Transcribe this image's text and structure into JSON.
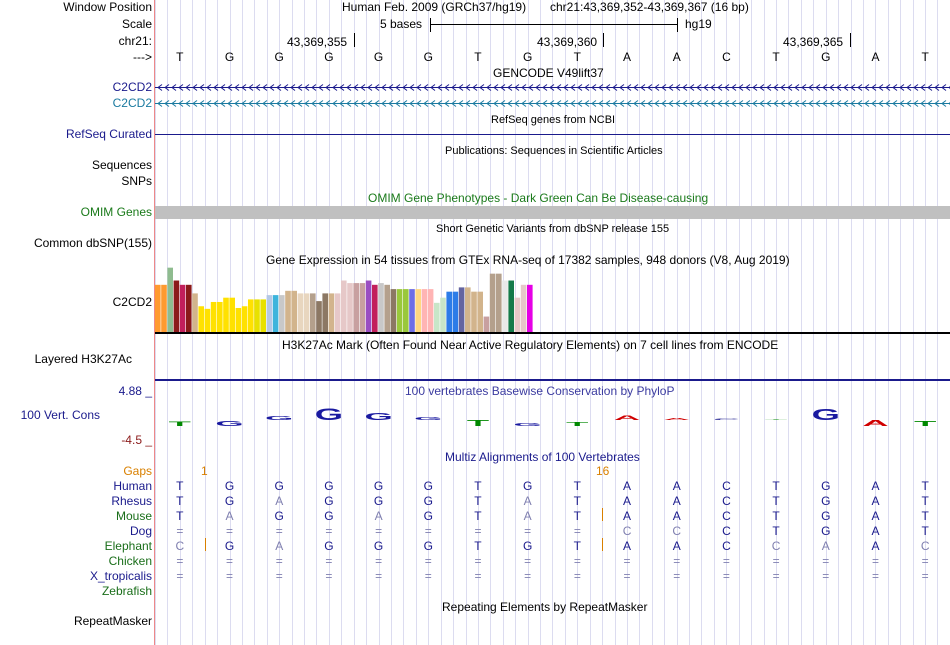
{
  "position": {
    "label": "Window Position",
    "assembly": "Human Feb. 2009 (GRCh37/hg19)",
    "coords": "chr21:43,369,352-43,369,367 (16 bp)"
  },
  "scale": {
    "label": "Scale",
    "bases": "5 bases",
    "db": "hg19"
  },
  "ruler": {
    "label": "chr21:",
    "marks": [
      "43,369,355",
      "43,369,360",
      "43,369,365"
    ]
  },
  "strand": {
    "label": "--->"
  },
  "bases": [
    "T",
    "G",
    "G",
    "G",
    "G",
    "G",
    "T",
    "G",
    "T",
    "A",
    "A",
    "C",
    "T",
    "G",
    "A",
    "T"
  ],
  "gencode": {
    "title": "GENCODE V49lift37",
    "genes": [
      "C2CD2",
      "C2CD2"
    ]
  },
  "refseq": {
    "title": "RefSeq genes from NCBI",
    "label": "RefSeq Curated"
  },
  "publications": {
    "title": "Publications: Sequences in Scientific Articles",
    "labels": [
      "Sequences",
      "SNPs"
    ]
  },
  "omim": {
    "title": "OMIM Gene Phenotypes - Dark Green Can Be Disease-causing",
    "label": "OMIM Genes",
    "color": "#1a7a1a"
  },
  "dbsnp": {
    "title": "Short Genetic Variants from dbSNP release 155",
    "label": "Common dbSNP(155)"
  },
  "gtex": {
    "title": "Gene Expression in 54 tissues from GTEx RNA-seq of 17382 samples, 948 donors (V8, Aug 2019)",
    "label": "C2CD2",
    "values": [
      0.55,
      0.55,
      0.75,
      0.6,
      0.55,
      0.55,
      0.45,
      0.3,
      0.27,
      0.35,
      0.35,
      0.4,
      0.4,
      0.28,
      0.3,
      0.38,
      0.38,
      0.38,
      0.43,
      0.43,
      0.43,
      0.48,
      0.48,
      0.45,
      0.45,
      0.45,
      0.36,
      0.45,
      0.45,
      0.45,
      0.6,
      0.57,
      0.57,
      0.57,
      0.6,
      0.55,
      0.57,
      0.55,
      0.5,
      0.5,
      0.5,
      0.5,
      0.5,
      0.5,
      0.5,
      0.34,
      0.4,
      0.47,
      0.47,
      0.52,
      0.52,
      0.47,
      0.47,
      0.18,
      0.68,
      0.68,
      0.6,
      0.6,
      0.4,
      0.55,
      0.55,
      0.6,
      0.6,
      0.6,
      0.6,
      0.6,
      0.6,
      0.5,
      0.68,
      0.52,
      0.75,
      0.75,
      0.45,
      0.45,
      0.45,
      0.42,
      0.6,
      0.6,
      0.6,
      0.6,
      0.52,
      0.52,
      0.08
    ],
    "colors": [
      "#ff9a30",
      "#ff9a30",
      "#8fbc8f",
      "#8b1a1a",
      "#c21f5b",
      "#8b1a1a",
      "#d2b48c",
      "#ffe100",
      "#ffe100",
      "#ffe100",
      "#ffe100",
      "#ffe100",
      "#ffe100",
      "#ffe100",
      "#ffe100",
      "#ffe100",
      "#e8e100",
      "#e8e100",
      "#b4c8e6",
      "#3cb4dc",
      "#c8c8c8",
      "#d2b48c",
      "#d2b48c",
      "#e8d6bf",
      "#e8d6bf",
      "#b4a08c",
      "#8c7864",
      "#8c7864",
      "#d2b48c",
      "#e6c8c8",
      "#e6c8c8",
      "#e6c8c8",
      "#c8a0a0",
      "#c8a0a0",
      "#9a4ec2",
      "#c21f5b",
      "#c8c8c8",
      "#b4a08c",
      "#8c7864",
      "#9ac83c",
      "#9ac83c",
      "#6e6ee6",
      "#ffd780",
      "#ffb4b4",
      "#ffb4b4",
      "#c8e6c8",
      "#c8e6c8",
      "#2c7ce8",
      "#2c7ce8",
      "#6464a0",
      "#d2b48c",
      "#d2b48c",
      "#d2b48c",
      "#c8a0a0",
      "#b4a08c",
      "#b4a08c",
      "#e8e8e8",
      "#147a4a",
      "#e6c8c8",
      "#e6c8c8",
      "#e600e6"
    ]
  },
  "h3k27ac": {
    "title": "H3K27Ac Mark (Often Found Near Active Regulatory Elements) on 7 cell lines from ENCODE",
    "label": "Layered H3K27Ac"
  },
  "phylop": {
    "title": "100 vertebrates Basewise Conservation by PhyloP",
    "label": "100 Vert. Cons",
    "max": "4.88 _",
    "min": "-4.5 _",
    "title_color": "#3c3ca0"
  },
  "multiz": {
    "title": "Multiz Alignments of 100 Vertebrates",
    "gaps_label": "Gaps",
    "gap_markers": [
      "1",
      "16"
    ],
    "species": [
      {
        "name": "Human",
        "color": "#1a1a8c",
        "bases": [
          "T",
          "G",
          "G",
          "G",
          "G",
          "G",
          "T",
          "G",
          "T",
          "A",
          "A",
          "C",
          "T",
          "G",
          "A",
          "T"
        ]
      },
      {
        "name": "Rhesus",
        "color": "#1a1a8c",
        "bases": [
          "T",
          "G",
          "A",
          "G",
          "G",
          "G",
          "T",
          "A",
          "T",
          "A",
          "A",
          "C",
          "T",
          "G",
          "A",
          "T"
        ]
      },
      {
        "name": "Mouse",
        "color": "#1a6e1a",
        "bases": [
          "T",
          "A",
          "G",
          "G",
          "A",
          "G",
          "T",
          "A",
          "T",
          "A",
          "A",
          "C",
          "T",
          "G",
          "A",
          "T"
        ]
      },
      {
        "name": "Dog",
        "color": "#1a1a8c",
        "bases": [
          "=",
          "=",
          "=",
          "=",
          "=",
          "=",
          "=",
          "=",
          "=",
          "C",
          "C",
          "C",
          "T",
          "G",
          "A",
          "T"
        ]
      },
      {
        "name": "Elephant",
        "color": "#1a6e1a",
        "bases": [
          "C",
          "G",
          "A",
          "G",
          "G",
          "G",
          "T",
          "G",
          "T",
          "A",
          "A",
          "C",
          "C",
          "A",
          "A",
          "C"
        ]
      },
      {
        "name": "Chicken",
        "color": "#1a6e1a",
        "bases": [
          "=",
          "=",
          "=",
          "=",
          "=",
          "=",
          "=",
          "=",
          "=",
          "=",
          "=",
          "=",
          "=",
          "=",
          "=",
          "="
        ]
      },
      {
        "name": "X_tropicalis",
        "color": "#1a1a8c",
        "bases": [
          "=",
          "=",
          "=",
          "=",
          "=",
          "=",
          "=",
          "=",
          "=",
          "=",
          "=",
          "=",
          "=",
          "=",
          "=",
          "="
        ]
      },
      {
        "name": "Zebrafish",
        "color": "#1a6e1a",
        "bases": []
      }
    ]
  },
  "repeatmasker": {
    "title": "Repeating Elements by RepeatMasker",
    "label": "RepeatMasker"
  },
  "colors": {
    "navy": "#1a1a8c",
    "teal": "#1a7aa0",
    "orange": "#d98000",
    "gray": "#c0c0c0"
  }
}
